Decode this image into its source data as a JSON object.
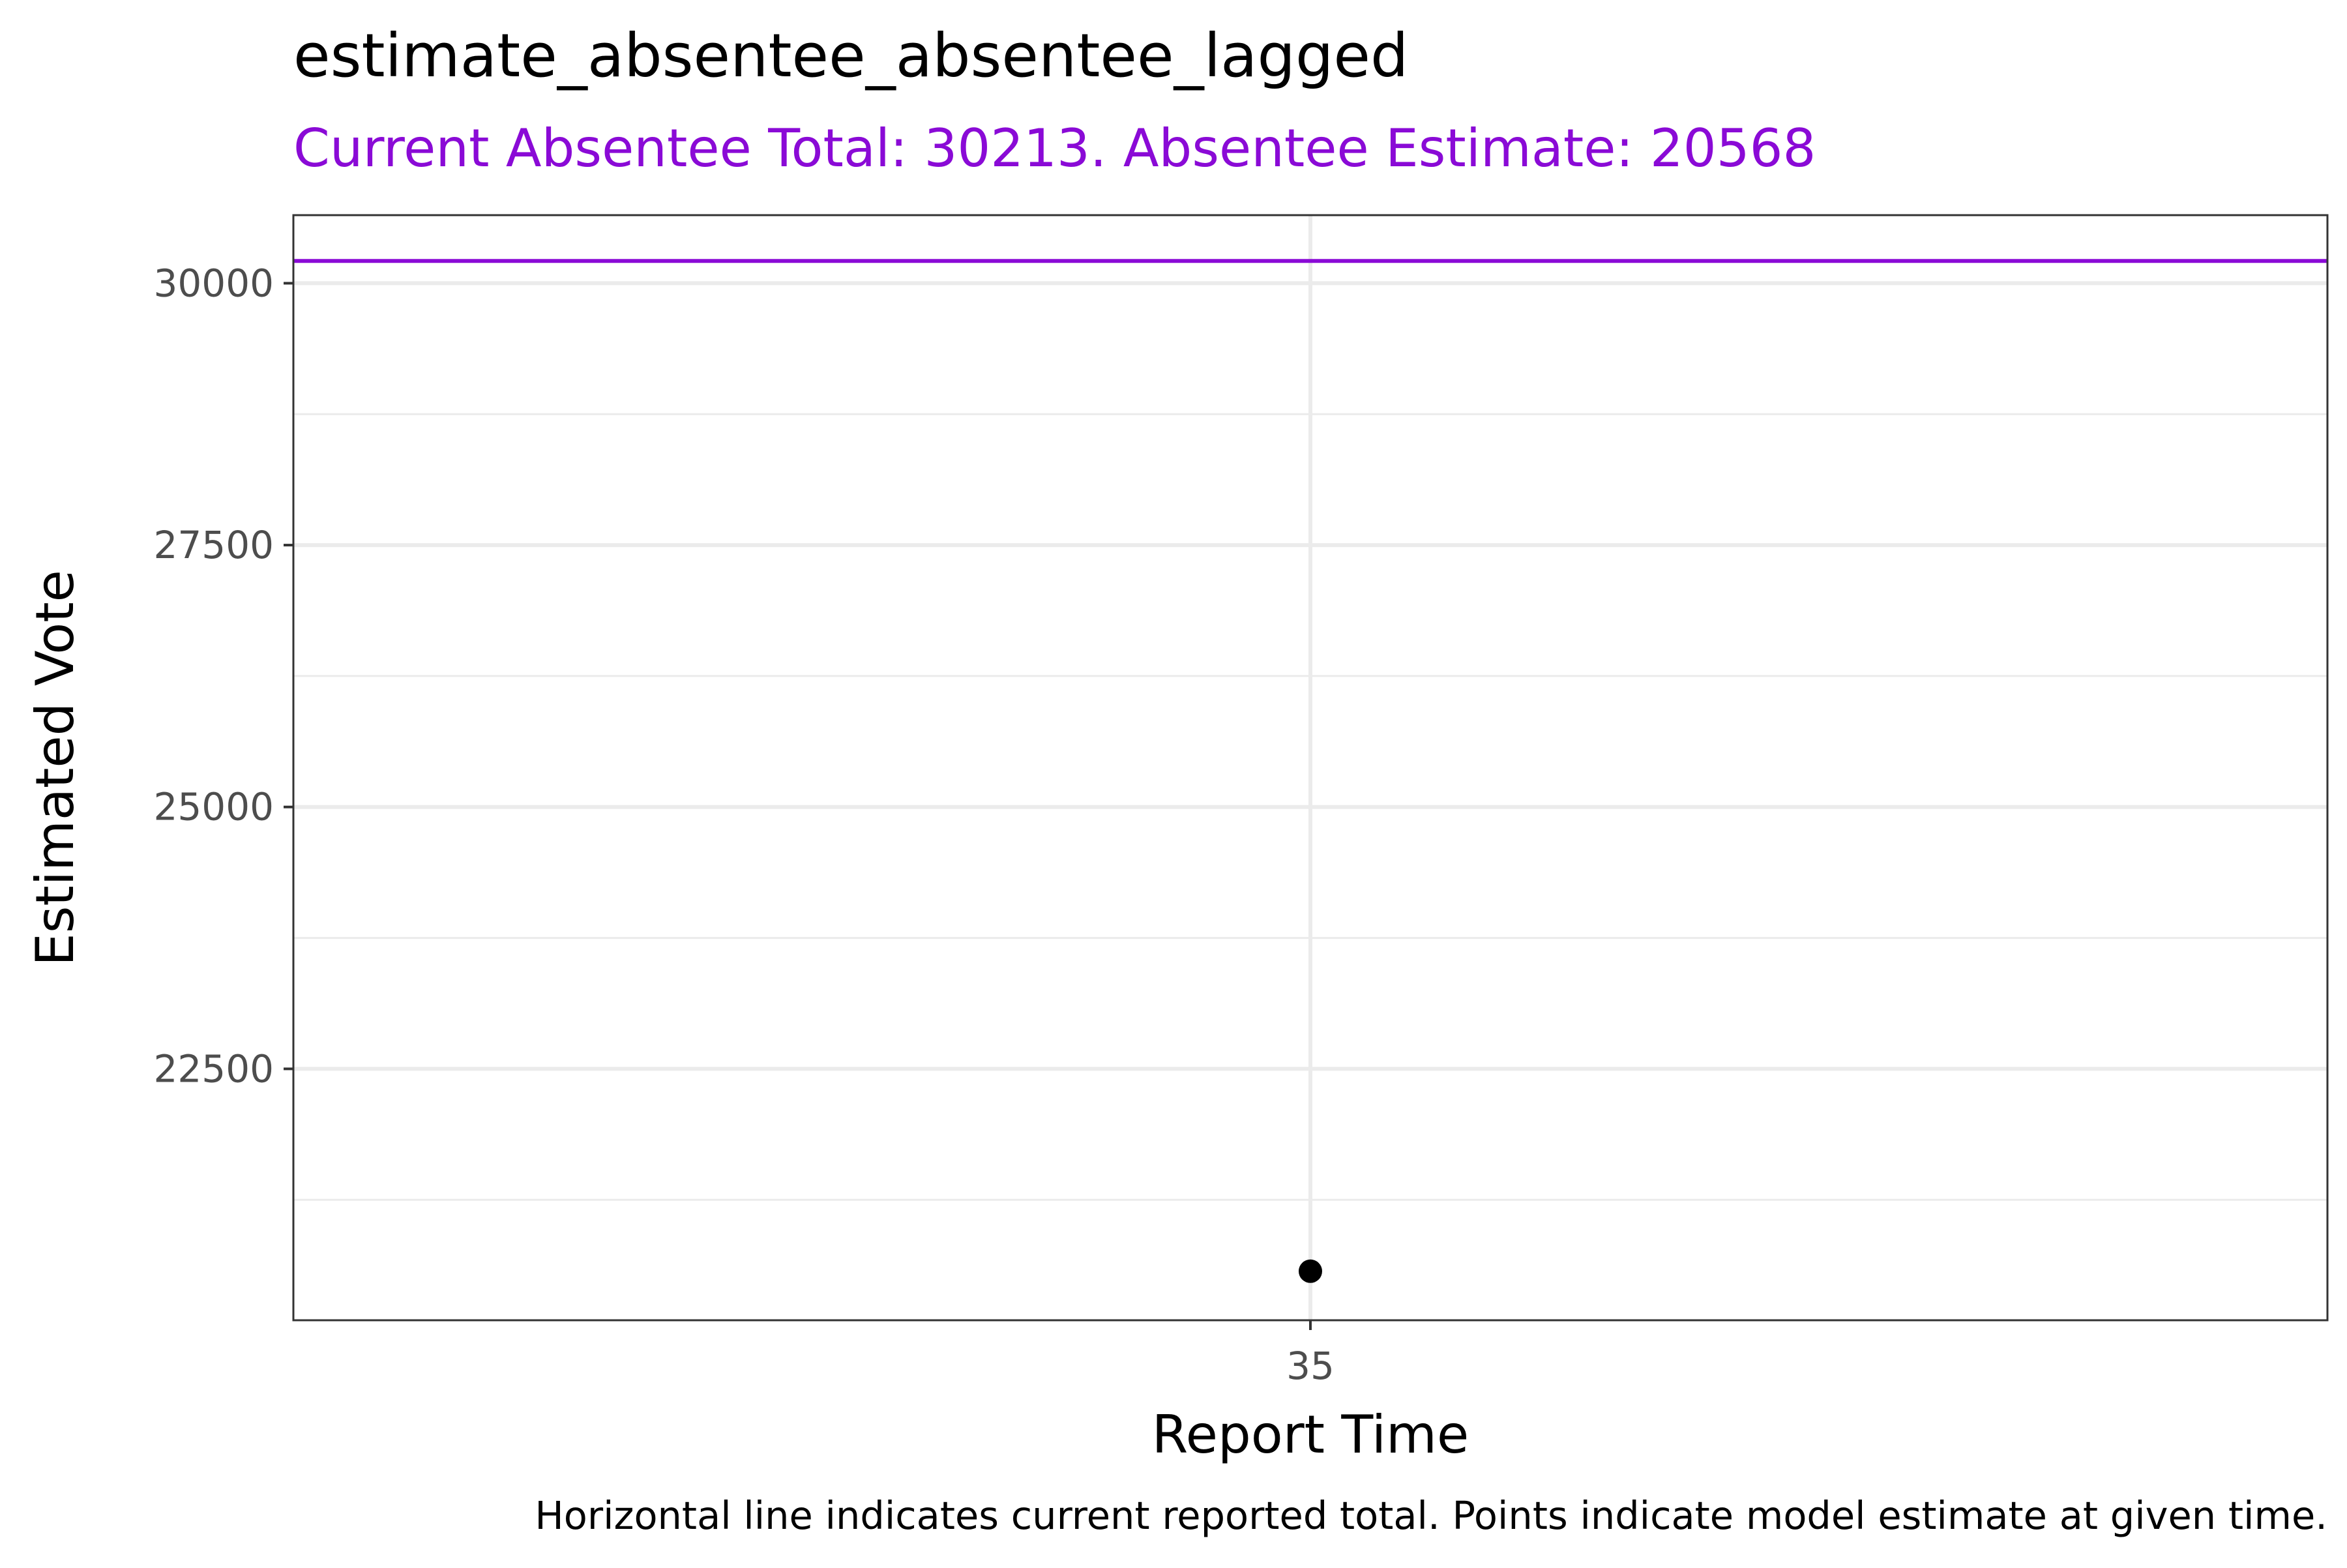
{
  "chart_data": {
    "type": "scatter",
    "title": "estimate_absentee_absentee_lagged",
    "subtitle": "Current Absentee Total: 30213. Absentee Estimate: 20568",
    "xlabel": "Report Time",
    "ylabel": "Estimated Vote",
    "caption": "Horizontal line indicates current reported total. Points indicate model estimate at given time.",
    "x_ticks": [
      "35"
    ],
    "y_ticks": [
      22500,
      25000,
      27500,
      30000
    ],
    "y_tick_labels": [
      "22500",
      "25000",
      "27500",
      "30000"
    ],
    "ylim": [
      20100,
      30650
    ],
    "points": [
      {
        "x": "35",
        "y": 20568
      }
    ],
    "reference_line": {
      "y": 30213
    },
    "grid": true,
    "colors": {
      "accent": "#8a0ad6",
      "point": "#000000",
      "grid": "#ebebeb",
      "panel_border": "#333333",
      "tick_text": "#4d4d4d"
    }
  }
}
